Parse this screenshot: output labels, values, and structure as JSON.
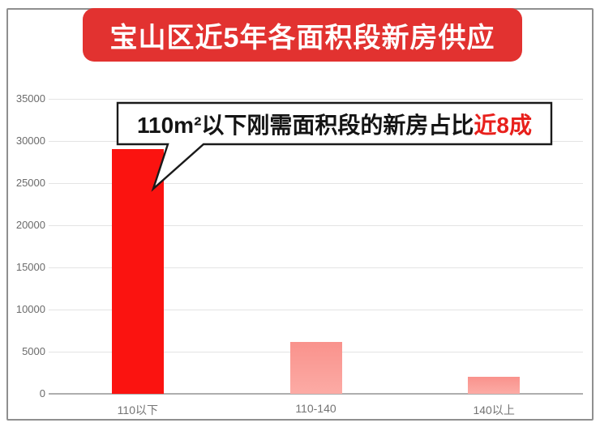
{
  "title": "宝山区近5年各面积段新房供应",
  "callout": {
    "text_black": "110m²以下刚需面积段的新房占比",
    "text_red": "近8成"
  },
  "colors": {
    "banner_red": "#e23230",
    "highlight_red": "#e8201c",
    "bar_bright_red": "#fb1310",
    "bar_pink_top": "#f9928c",
    "bar_pink_bottom": "#fcaba5",
    "grid_gray": "#e4e4e4",
    "axis_text_gray": "#6b6b6b"
  },
  "chart_data": {
    "type": "bar",
    "title": "宝山区近5年各面积段新房供应",
    "categories": [
      "110以下",
      "110-140",
      "140以上"
    ],
    "values": [
      29000,
      6200,
      2000
    ],
    "bar_colors": [
      "bright",
      "pink",
      "pink"
    ],
    "xlabel": "",
    "ylabel": "",
    "ylim": [
      0,
      35000
    ],
    "yticks": [
      0,
      5000,
      10000,
      15000,
      20000,
      25000,
      30000,
      35000
    ],
    "ytick_labels": [
      "0",
      "5000",
      "10000",
      "15000",
      "20000",
      "25000",
      "30000",
      "35000"
    ],
    "grid": true,
    "legend": false,
    "annotation": "110m²以下刚需面积段的新房占比近8成"
  }
}
